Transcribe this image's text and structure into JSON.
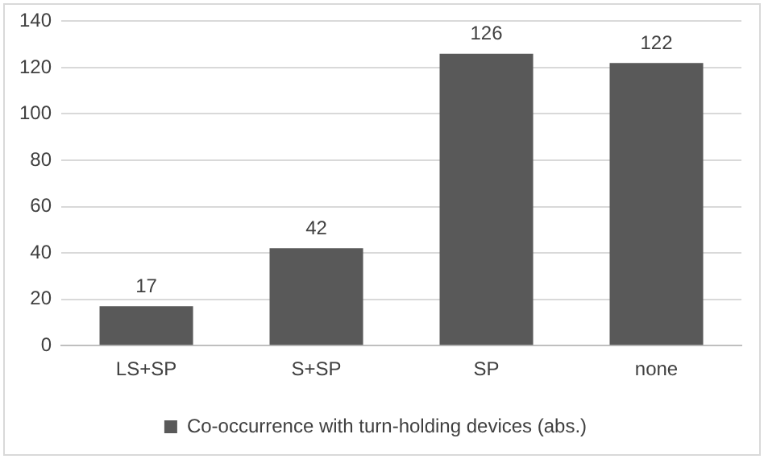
{
  "chart_data": {
    "type": "bar",
    "categories": [
      "LS+SP",
      "S+SP",
      "SP",
      "none"
    ],
    "series": [
      {
        "name": "Co-occurrence with turn-holding devices (abs.)",
        "color": "#595959",
        "values": [
          17,
          42,
          126,
          122
        ]
      }
    ],
    "ylim": [
      0,
      140
    ],
    "yticks": [
      0,
      20,
      40,
      60,
      80,
      100,
      120,
      140
    ],
    "grid": "y",
    "legend": "bottom",
    "data_labels": true
  }
}
